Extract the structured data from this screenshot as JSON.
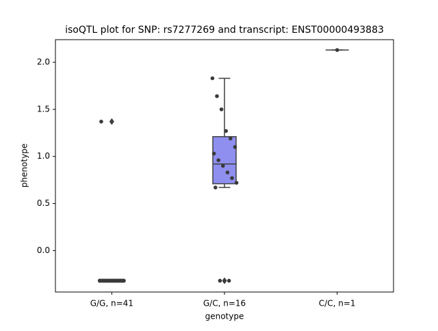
{
  "chart_data": {
    "type": "box",
    "title": "isoQTL plot for SNP: rs7277269 and transcript: ENST00000493883",
    "x_label": "genotype",
    "y_label": "phenotype",
    "categories": [
      "G/G, n=41",
      "G/C, n=16",
      "C/C, n=1"
    ],
    "color": "#8f8ff0",
    "point_color": "#3a3a3a",
    "boxes": [
      {
        "whislo": -0.32,
        "q1": -0.32,
        "med": -0.32,
        "q3": -0.32,
        "whishi": -0.32,
        "fliers": [
          1.37
        ]
      },
      {
        "whislo": 0.67,
        "q1": 0.71,
        "med": 0.92,
        "q3": 1.21,
        "whishi": 1.83,
        "fliers": [
          -0.32
        ]
      },
      {
        "whislo": 2.13,
        "q1": 2.13,
        "med": 2.13,
        "q3": 2.13,
        "whishi": 2.13,
        "fliers": []
      }
    ],
    "points": [
      [
        -0.32,
        -0.32,
        -0.32,
        -0.32,
        -0.32,
        -0.32,
        -0.32,
        -0.32,
        -0.32,
        -0.32,
        -0.32,
        -0.32,
        -0.32,
        -0.32,
        -0.32,
        -0.32,
        -0.32,
        -0.32,
        -0.32,
        -0.32,
        -0.32,
        -0.32,
        -0.32,
        -0.32,
        -0.32,
        -0.32,
        -0.32,
        -0.32,
        -0.32,
        -0.32,
        -0.32,
        -0.32,
        -0.32,
        -0.32,
        -0.32,
        -0.32,
        -0.32,
        -0.32,
        -0.32,
        -0.32,
        1.37
      ],
      [
        1.83,
        1.64,
        1.5,
        1.27,
        1.19,
        1.1,
        1.03,
        0.96,
        0.9,
        0.83,
        0.77,
        0.72,
        0.67,
        -0.32,
        -0.32,
        -0.32
      ],
      [
        2.13
      ]
    ],
    "ylim": [
      -0.44,
      2.24
    ],
    "yticks": [
      {
        "value": 0,
        "label": "0.0"
      },
      0.5,
      {
        "value": 1,
        "label": "1.0"
      },
      1.5,
      {
        "value": 2,
        "label": "2.0"
      }
    ]
  }
}
